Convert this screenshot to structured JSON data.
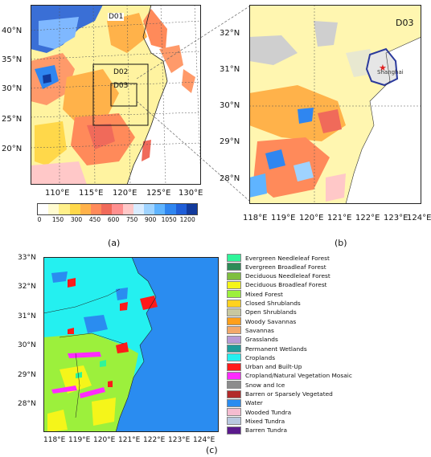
{
  "panel_a": {
    "caption": "(a)",
    "lat_labels": [
      "40°N",
      "35°N",
      "30°N",
      "25°N",
      "20°N"
    ],
    "lon_labels": [
      "110°E",
      "115°E",
      "120°E",
      "125°E",
      "130°E"
    ],
    "domain_labels": [
      "D01",
      "D02",
      "D03"
    ],
    "colorbar": {
      "labels": [
        "0",
        "150",
        "300",
        "450",
        "600",
        "750",
        "900",
        "1050",
        "1200"
      ],
      "colors": [
        "#ffffff",
        "#fffbd0",
        "#fff08a",
        "#ffd84a",
        "#ffb24a",
        "#ff8a5a",
        "#f06a5a",
        "#ff9090",
        "#ffc8c8",
        "#d9ecff",
        "#9fd3ff",
        "#5fb4ff",
        "#2f86f0",
        "#1f5ed8",
        "#123a9c"
      ]
    }
  },
  "panel_b": {
    "caption": "(b)",
    "domain_label": "D03",
    "city_label": "Shanghai",
    "lat_labels": [
      "32°N",
      "31°N",
      "30°N",
      "29°N",
      "28°N"
    ],
    "lon_labels": [
      "118°E",
      "119°E",
      "120°E",
      "121°E",
      "122°E",
      "123°E",
      "124°E"
    ]
  },
  "panel_c": {
    "caption": "(c)",
    "lat_labels": [
      "33°N",
      "32°N",
      "31°N",
      "30°N",
      "29°N",
      "28°N"
    ],
    "lon_labels": [
      "118°E",
      "119°E",
      "120°E",
      "121°E",
      "122°E",
      "123°E",
      "124°E"
    ],
    "legend": [
      {
        "label": "Evergreen Needleleaf Forest",
        "color": "#2ff59a"
      },
      {
        "label": "Evergreen Broadleaf Forest",
        "color": "#2e8b57"
      },
      {
        "label": "Deciduous Needleleaf Forest",
        "color": "#7fbf3f"
      },
      {
        "label": "Deciduous Broadleaf Forest",
        "color": "#f5f51a"
      },
      {
        "label": "Mixed Forest",
        "color": "#9cf03c"
      },
      {
        "label": "Closed Shrublands",
        "color": "#ffd21f"
      },
      {
        "label": "Open Shrublands",
        "color": "#c8c8a0"
      },
      {
        "label": "Woody Savannas",
        "color": "#ff9f1a"
      },
      {
        "label": "Savannas",
        "color": "#f2a86b"
      },
      {
        "label": "Grasslands",
        "color": "#b79ad6"
      },
      {
        "label": "Permanent Wetlands",
        "color": "#1f9b9b"
      },
      {
        "label": "Croplands",
        "color": "#24f0f0"
      },
      {
        "label": "Urban and Built-Up",
        "color": "#ff1a1a"
      },
      {
        "label": "Cropland/Natural Vegetation Mosaic",
        "color": "#ff2bff"
      },
      {
        "label": "Snow and Ice",
        "color": "#8c8c8c"
      },
      {
        "label": "Barren or Sparsely Vegetated",
        "color": "#b22a2a"
      },
      {
        "label": "Water",
        "color": "#2a8cf0"
      },
      {
        "label": "Wooded Tundra",
        "color": "#f5bcd0"
      },
      {
        "label": "Mixed Tundra",
        "color": "#b8c8e0"
      },
      {
        "label": "Barren Tundra",
        "color": "#5a1a8c"
      }
    ]
  }
}
